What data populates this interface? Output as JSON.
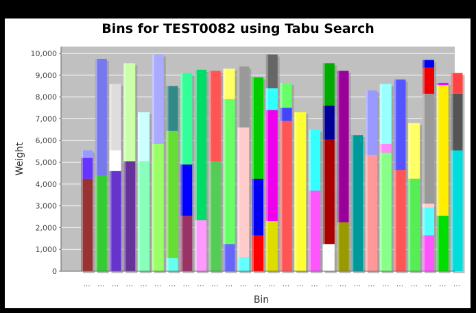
{
  "chart_data": {
    "type": "bar",
    "stacked": true,
    "title": "Bins for TEST0082 using Tabu Search",
    "xlabel": "Bin",
    "ylabel": "Weight",
    "ylim": [
      0,
      10000
    ],
    "yticks": [
      "0",
      "1,000",
      "2,000",
      "3,000",
      "4,000",
      "5,000",
      "6,000",
      "7,000",
      "8,000",
      "9,000",
      "10,000"
    ],
    "category_label": "...",
    "background": "#c0c0c0",
    "grid": true,
    "legend": "none",
    "bins": [
      {
        "segments": [
          {
            "value": 4250,
            "color": "#993333"
          },
          {
            "value": 950,
            "color": "#6633ff"
          },
          {
            "value": 350,
            "color": "#9999ff"
          }
        ]
      },
      {
        "segments": [
          {
            "value": 4400,
            "color": "#33cc33"
          },
          {
            "value": 5350,
            "color": "#7777ee"
          }
        ]
      },
      {
        "segments": [
          {
            "value": 4600,
            "color": "#6633cc"
          },
          {
            "value": 950,
            "color": "#ffffff"
          },
          {
            "value": 3050,
            "color": "#dddddd"
          }
        ]
      },
      {
        "segments": [
          {
            "value": 5050,
            "color": "#663399"
          },
          {
            "value": 4500,
            "color": "#ccffaa"
          }
        ]
      },
      {
        "segments": [
          {
            "value": 5050,
            "color": "#88ffbb"
          },
          {
            "value": 2250,
            "color": "#ccffff"
          }
        ]
      },
      {
        "segments": [
          {
            "value": 5850,
            "color": "#99ff66"
          },
          {
            "value": 4100,
            "color": "#aaaaff"
          }
        ]
      },
      {
        "segments": [
          {
            "value": 600,
            "color": "#66ffee"
          },
          {
            "value": 5850,
            "color": "#66dd33"
          },
          {
            "value": 2050,
            "color": "#338888"
          }
        ]
      },
      {
        "segments": [
          {
            "value": 2550,
            "color": "#993366"
          },
          {
            "value": 2350,
            "color": "#0000ff"
          },
          {
            "value": 4200,
            "color": "#33ff99"
          }
        ]
      },
      {
        "segments": [
          {
            "value": 2350,
            "color": "#ff99ff"
          },
          {
            "value": 6900,
            "color": "#00dd66"
          }
        ]
      },
      {
        "segments": [
          {
            "value": 5050,
            "color": "#55cc55"
          },
          {
            "value": 4150,
            "color": "#ff5555"
          }
        ]
      },
      {
        "segments": [
          {
            "value": 1250,
            "color": "#6666ff"
          },
          {
            "value": 6650,
            "color": "#66ff66"
          },
          {
            "value": 1400,
            "color": "#ffff66"
          }
        ]
      },
      {
        "segments": [
          {
            "value": 650,
            "color": "#66ffff"
          },
          {
            "value": 5950,
            "color": "#ffcccc"
          },
          {
            "value": 2800,
            "color": "#999999"
          }
        ]
      },
      {
        "segments": [
          {
            "value": 1650,
            "color": "#ff0000"
          },
          {
            "value": 2600,
            "color": "#0000ee"
          },
          {
            "value": 4650,
            "color": "#00cc00"
          }
        ]
      },
      {
        "segments": [
          {
            "value": 2300,
            "color": "#dddd00"
          },
          {
            "value": 5100,
            "color": "#ee00ee"
          },
          {
            "value": 1000,
            "color": "#33ffff"
          },
          {
            "value": 1550,
            "color": "#666666"
          }
        ]
      },
      {
        "segments": [
          {
            "value": 6900,
            "color": "#ff5555"
          },
          {
            "value": 600,
            "color": "#4444ff"
          },
          {
            "value": 1150,
            "color": "#66ff66"
          }
        ]
      },
      {
        "segments": [
          {
            "value": 7300,
            "color": "#ffff33"
          }
        ]
      },
      {
        "segments": [
          {
            "value": 3700,
            "color": "#ff55ff"
          },
          {
            "value": 2800,
            "color": "#33ffff"
          }
        ]
      },
      {
        "segments": [
          {
            "value": 1250,
            "color": "#ffffff"
          },
          {
            "value": 4800,
            "color": "#aa0000"
          },
          {
            "value": 1550,
            "color": "#000099"
          },
          {
            "value": 1950,
            "color": "#00aa00"
          }
        ]
      },
      {
        "segments": [
          {
            "value": 2250,
            "color": "#999900"
          },
          {
            "value": 6950,
            "color": "#990099"
          }
        ]
      },
      {
        "segments": [
          {
            "value": 6250,
            "color": "#009999"
          }
        ]
      },
      {
        "segments": [
          {
            "value": 5350,
            "color": "#ff9999"
          },
          {
            "value": 2950,
            "color": "#9999ff"
          }
        ]
      },
      {
        "segments": [
          {
            "value": 5450,
            "color": "#88ff88"
          },
          {
            "value": 400,
            "color": "#ff88ff"
          },
          {
            "value": 2750,
            "color": "#99ffff"
          }
        ]
      },
      {
        "segments": [
          {
            "value": 4650,
            "color": "#ff5555"
          },
          {
            "value": 4150,
            "color": "#5555ff"
          }
        ]
      },
      {
        "segments": [
          {
            "value": 4250,
            "color": "#55ee55"
          },
          {
            "value": 2550,
            "color": "#ffff66"
          }
        ]
      },
      {
        "segments": [
          {
            "value": 1650,
            "color": "#ff55ff"
          },
          {
            "value": 1250,
            "color": "#55ffff"
          },
          {
            "value": 200,
            "color": "#ffcccc"
          },
          {
            "value": 5050,
            "color": "#999999"
          },
          {
            "value": 1200,
            "color": "#ee0000"
          },
          {
            "value": 350,
            "color": "#0000ee"
          }
        ]
      },
      {
        "segments": [
          {
            "value": 2550,
            "color": "#00dd00"
          },
          {
            "value": 6000,
            "color": "#ffee00"
          },
          {
            "value": 100,
            "color": "#ff00ff"
          }
        ]
      },
      {
        "segments": [
          {
            "value": 5550,
            "color": "#00dddd"
          },
          {
            "value": 2600,
            "color": "#555555"
          },
          {
            "value": 950,
            "color": "#ff4444"
          }
        ]
      }
    ]
  }
}
